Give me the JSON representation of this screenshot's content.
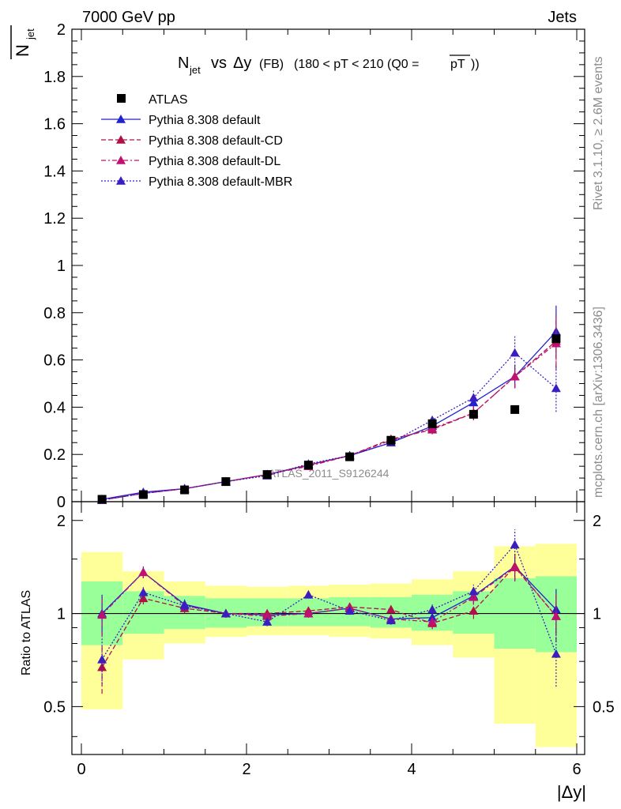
{
  "header": {
    "left": "7000 GeV pp",
    "right": "Jets"
  },
  "plot_title": {
    "main": "N",
    "main_sub": "jet",
    "vs": "vs",
    "delta": "Δy",
    "fb": "(FB)",
    "range": "(180 < pT < 210 (Q0 =",
    "pt": "pT",
    "close": "))"
  },
  "ylabel_top": {
    "n": "N",
    "sub": "jet"
  },
  "ratio_ylabel": "Ratio to ATLAS",
  "xlabel": "|Δy|",
  "watermark": "ATLAS_2011_S9126244",
  "side_text": {
    "rivet": "Rivet 3.1.10, ≥ 2.6M events",
    "mcplots": "mcplots.cern.ch [arXiv:1306.3436]"
  },
  "colors": {
    "data": "#000000",
    "default": "#2222cc",
    "cd": "#b0104a",
    "dl": "#c01070",
    "mbr": "#3b1ec0",
    "band_inner": "#99ff99",
    "band_outer": "#ffff99"
  },
  "chart_data": [
    {
      "type": "scatter",
      "title": "N_jet vs Δy (FB) (180 < pT < 210 (Q0 = pT))",
      "xlabel": "|Δy|",
      "ylabel": "N_jet",
      "xlim": [
        -0.1,
        6.1
      ],
      "ylim": [
        0,
        2
      ],
      "yticks": [
        "0",
        "0.2",
        "0.4",
        "0.6",
        "0.8",
        "1",
        "1.2",
        "1.4",
        "1.6",
        "1.8",
        "2"
      ],
      "x": [
        0.25,
        0.75,
        1.25,
        1.75,
        2.25,
        2.75,
        3.25,
        3.75,
        4.25,
        4.75,
        5.25,
        5.75
      ],
      "legend_placement": "top-left",
      "series": [
        {
          "name": "ATLAS",
          "key": "data",
          "style": "marker-square",
          "values": [
            0.01,
            0.03,
            0.05,
            0.085,
            0.115,
            0.155,
            0.19,
            0.26,
            0.33,
            0.37,
            0.39,
            0.69
          ]
        },
        {
          "name": "Pythia 8.308 default",
          "key": "default",
          "style": "solid",
          "values": [
            0.01,
            0.04,
            0.055,
            0.085,
            0.115,
            0.155,
            0.195,
            0.25,
            0.32,
            0.42,
            0.53,
            0.72
          ],
          "err": [
            0.002,
            0.003,
            0.004,
            0.005,
            0.006,
            0.008,
            0.01,
            0.012,
            0.02,
            0.03,
            0.05,
            0.11
          ]
        },
        {
          "name": "Pythia 8.308 default-CD",
          "key": "cd",
          "style": "dashed",
          "values": [
            0.007,
            0.035,
            0.055,
            0.085,
            0.115,
            0.155,
            0.195,
            0.265,
            0.305,
            0.375,
            0.53,
            0.68
          ],
          "err": [
            0.002,
            0.003,
            0.004,
            0.005,
            0.006,
            0.008,
            0.01,
            0.012,
            0.02,
            0.03,
            0.05,
            0.11
          ]
        },
        {
          "name": "Pythia 8.308 default-DL",
          "key": "dl",
          "style": "dashdot",
          "values": [
            0.007,
            0.035,
            0.055,
            0.085,
            0.115,
            0.15,
            0.195,
            0.26,
            0.31,
            0.375,
            0.53,
            0.67
          ],
          "err": [
            0.002,
            0.003,
            0.004,
            0.005,
            0.006,
            0.008,
            0.01,
            0.012,
            0.02,
            0.03,
            0.05,
            0.11
          ]
        },
        {
          "name": "Pythia 8.308 default-MBR",
          "key": "mbr",
          "style": "dotted",
          "values": [
            0.007,
            0.035,
            0.055,
            0.085,
            0.11,
            0.16,
            0.195,
            0.25,
            0.345,
            0.44,
            0.63,
            0.48
          ],
          "err": [
            0.002,
            0.003,
            0.004,
            0.005,
            0.006,
            0.008,
            0.01,
            0.012,
            0.02,
            0.03,
            0.07,
            0.1
          ]
        }
      ]
    },
    {
      "type": "scatter",
      "title": "",
      "xlabel": "|Δy|",
      "ylabel": "Ratio to ATLAS",
      "xlim": [
        -0.1,
        6.1
      ],
      "ylim": [
        0.35,
        2.3
      ],
      "yscale": "log",
      "yticks": [
        "0.5",
        "1",
        "2"
      ],
      "xticks": [
        "0",
        "2",
        "4",
        "6"
      ],
      "x": [
        0.25,
        0.75,
        1.25,
        1.75,
        2.25,
        2.75,
        3.25,
        3.75,
        4.25,
        4.75,
        5.25,
        5.75
      ],
      "bands": {
        "edges": [
          0,
          0.5,
          1,
          1.5,
          2,
          2.5,
          3,
          3.5,
          4,
          4.5,
          5,
          5.5,
          6
        ],
        "inner_lo": [
          0.79,
          0.86,
          0.89,
          0.9,
          0.91,
          0.91,
          0.91,
          0.9,
          0.88,
          0.86,
          0.77,
          0.75
        ],
        "inner_hi": [
          1.27,
          1.18,
          1.14,
          1.12,
          1.12,
          1.12,
          1.13,
          1.13,
          1.15,
          1.18,
          1.3,
          1.32
        ],
        "outer_lo": [
          0.49,
          0.71,
          0.8,
          0.84,
          0.85,
          0.85,
          0.84,
          0.83,
          0.79,
          0.72,
          0.44,
          0.37
        ],
        "outer_hi": [
          1.58,
          1.37,
          1.27,
          1.23,
          1.22,
          1.23,
          1.24,
          1.25,
          1.29,
          1.37,
          1.65,
          1.68
        ]
      },
      "series": [
        {
          "name": "Pythia 8.308 default",
          "key": "default",
          "style": "solid",
          "values": [
            1.0,
            1.36,
            1.07,
            1.0,
            0.99,
            1.0,
            1.04,
            0.96,
            0.97,
            1.14,
            1.42,
            1.03
          ],
          "err": [
            0.15,
            0.06,
            0.04,
            0.03,
            0.03,
            0.03,
            0.03,
            0.03,
            0.04,
            0.06,
            0.14,
            0.17
          ]
        },
        {
          "name": "Pythia 8.308 default-CD",
          "key": "cd",
          "style": "dashed",
          "values": [
            0.67,
            1.12,
            1.04,
            1.0,
            1.0,
            1.02,
            1.05,
            1.03,
            0.93,
            1.02,
            1.42,
            0.98
          ],
          "err": [
            0.12,
            0.05,
            0.04,
            0.03,
            0.03,
            0.03,
            0.03,
            0.03,
            0.04,
            0.06,
            0.14,
            0.17
          ]
        },
        {
          "name": "Pythia 8.308 default-DL",
          "key": "dl",
          "style": "dashdot",
          "values": [
            0.99,
            1.36,
            1.06,
            1.0,
            0.98,
            1.0,
            1.04,
            0.96,
            0.94,
            1.13,
            1.41,
            0.98
          ],
          "err": [
            0.15,
            0.06,
            0.04,
            0.03,
            0.03,
            0.03,
            0.03,
            0.03,
            0.04,
            0.06,
            0.14,
            0.17
          ]
        },
        {
          "name": "Pythia 8.308 default-MBR",
          "key": "mbr",
          "style": "dotted",
          "values": [
            0.71,
            1.17,
            1.06,
            1.0,
            0.94,
            1.15,
            1.02,
            0.95,
            1.03,
            1.18,
            1.67,
            0.74
          ],
          "err": [
            0.12,
            0.05,
            0.04,
            0.03,
            0.03,
            0.03,
            0.03,
            0.03,
            0.04,
            0.06,
            0.2,
            0.16
          ]
        }
      ]
    }
  ]
}
